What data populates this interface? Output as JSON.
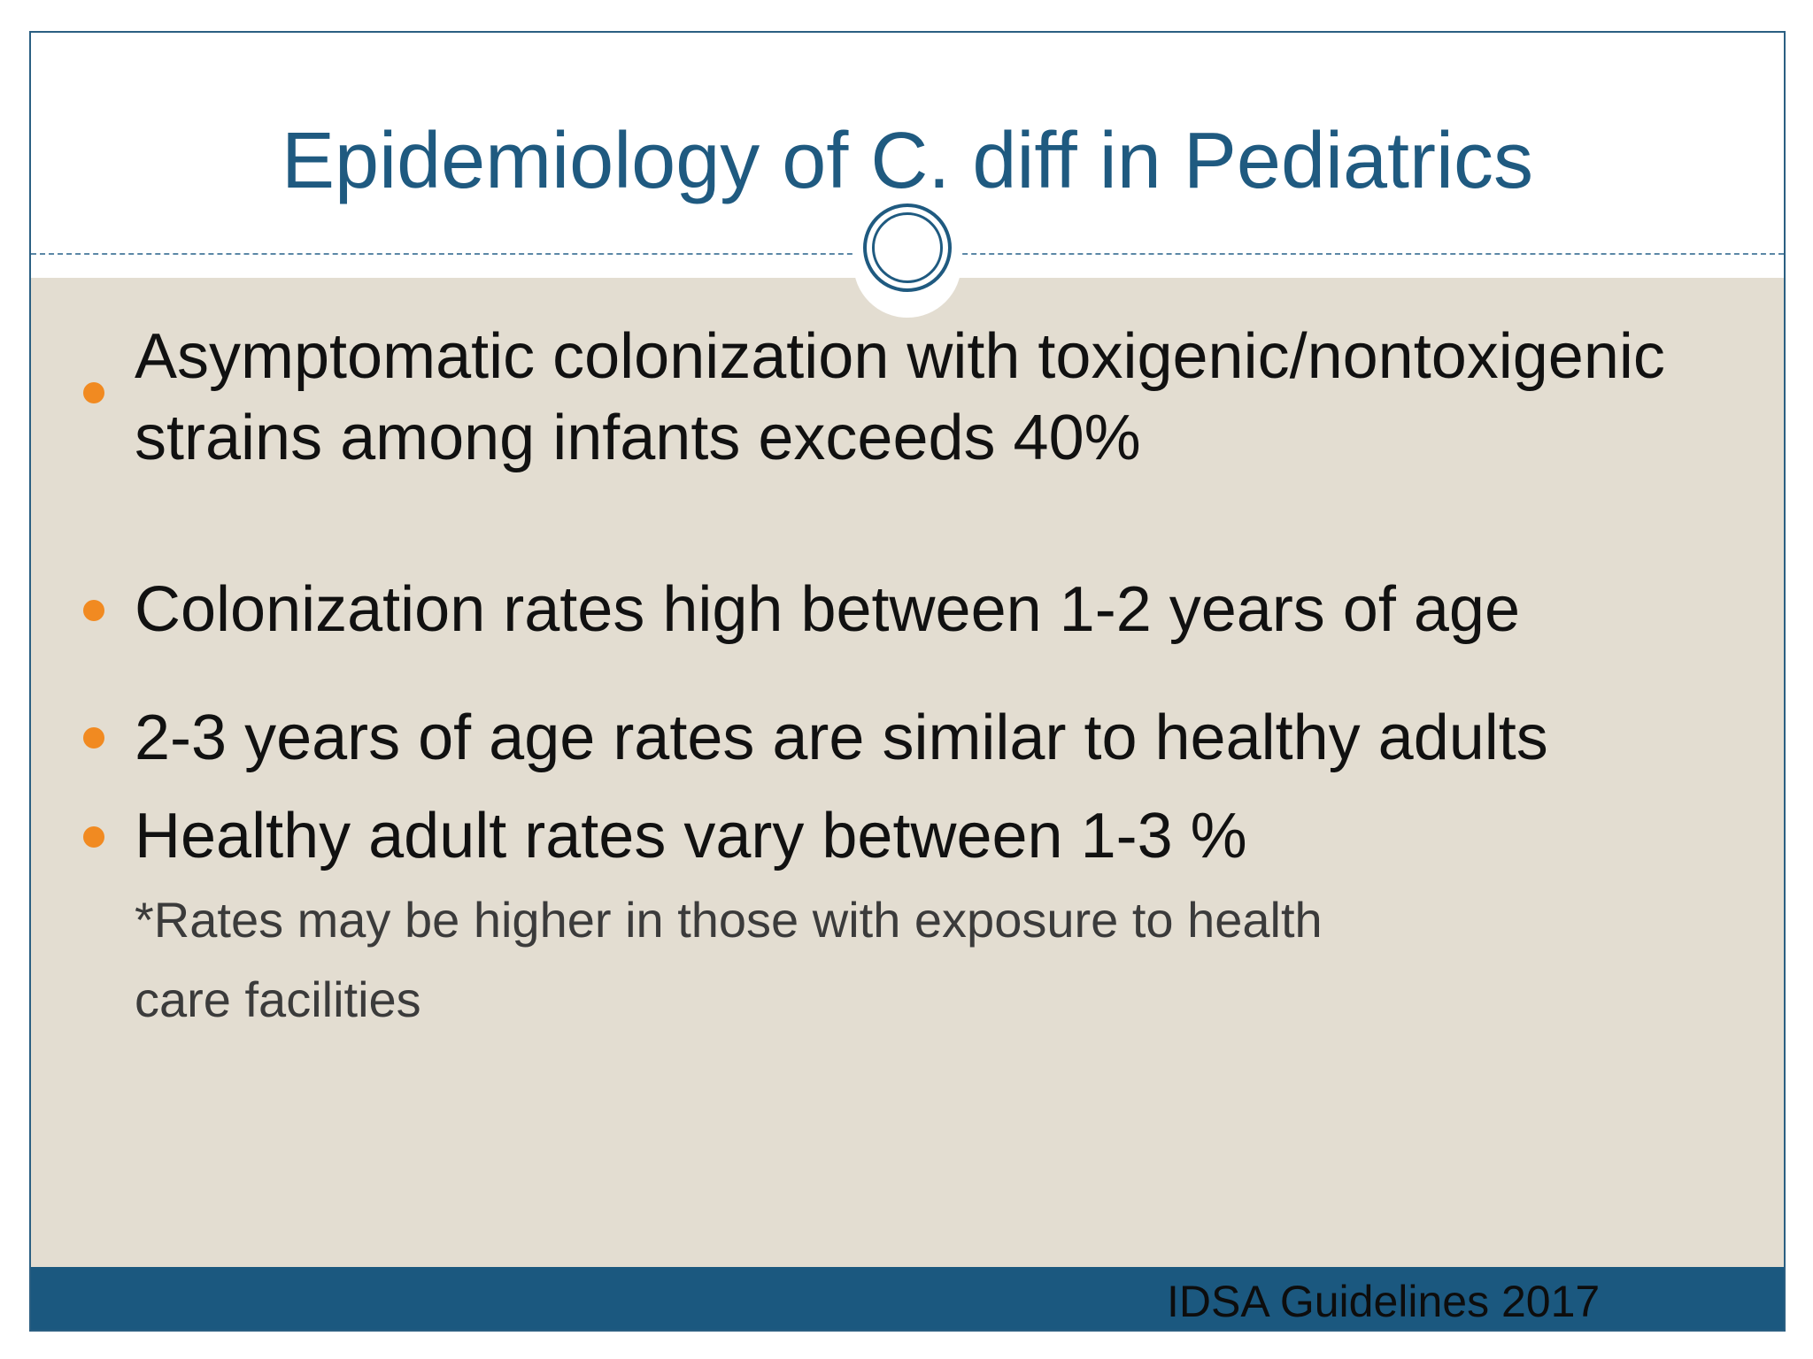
{
  "slide": {
    "title": "Epidemiology of C. diff in Pediatrics",
    "bullets": [
      {
        "line1": "Asymptomatic colonization with toxigenic/nontoxigenic",
        "line2": "strains among infants exceeds 40%"
      },
      {
        "line1": "Colonization rates high between 1-2 years of age"
      },
      {
        "line1": "2-3 years of age rates are similar to healthy adults"
      },
      {
        "line1": "Healthy adult rates vary between 1-3 %"
      }
    ],
    "note": {
      "line1": "*Rates may be higher in those with exposure to health",
      "line2": "care facilities"
    },
    "footer": "IDSA Guidelines 2017"
  },
  "colors": {
    "title": "#1f5a80",
    "content_background": "#e3ddd1",
    "bullet": "#f18a21",
    "footer_bar": "#1b587f"
  }
}
